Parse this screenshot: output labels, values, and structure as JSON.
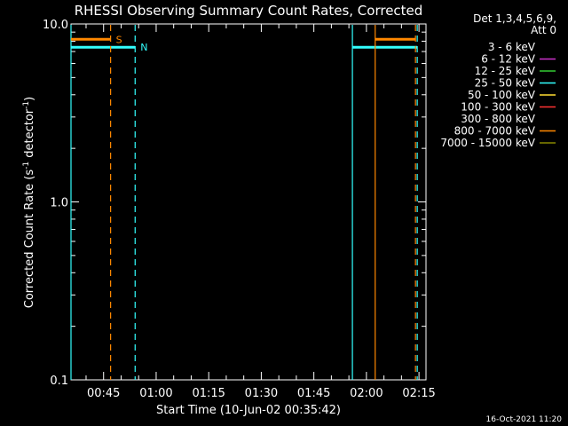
{
  "chart_data": {
    "type": "line",
    "title": "RHESSI Observing Summary Count Rates, Corrected",
    "xlabel": "Start Time (10-Jun-02 00:35:42)",
    "ylabel_main": "Corrected Count Rate (s",
    "ylabel_sup1": "-1",
    "ylabel_mid": " detector",
    "ylabel_sup2": "-1",
    "ylabel_end": ")",
    "yscale": "log",
    "ylim": [
      0.1,
      10.0
    ],
    "xlim": [
      "00:35:42",
      "02:17:00"
    ],
    "y_ticks": [
      "0.1",
      "1.0",
      "10.0"
    ],
    "x_ticks": [
      "00:45",
      "01:00",
      "01:15",
      "01:30",
      "01:45",
      "02:00",
      "02:15"
    ],
    "legend_header": [
      "Det 1,3,4,5,6,9,",
      "Att 0"
    ],
    "legend": [
      {
        "label": "3 - 6 keV",
        "color": "#000000"
      },
      {
        "label": "6 - 12 keV",
        "color": "#cc33cc"
      },
      {
        "label": "12 - 25 keV",
        "color": "#33cc33"
      },
      {
        "label": "25 - 50 keV",
        "color": "#33ffff"
      },
      {
        "label": "50 - 100 keV",
        "color": "#ffdd33"
      },
      {
        "label": "100 - 300 keV",
        "color": "#ff3333"
      },
      {
        "label": "300 - 800 keV",
        "color": "#000000"
      },
      {
        "label": "800 - 7000 keV",
        "color": "#ff8800"
      },
      {
        "label": "7000 - 15000 keV",
        "color": "#888800"
      }
    ],
    "series": [],
    "markers": {
      "saa": {
        "label": "S",
        "color": "#ff8800",
        "y": 8.2,
        "intervals": [
          [
            "00:35:42",
            "00:47:00"
          ],
          [
            "02:02:30",
            "02:14:00"
          ]
        ],
        "dashed": [
          "00:47:00",
          "02:14:00"
        ],
        "solid": [
          "02:02:30"
        ]
      },
      "night": {
        "label": "N",
        "color": "#33ffff",
        "y": 7.4,
        "intervals": [
          [
            "00:35:42",
            "00:54:00"
          ],
          [
            "01:56:00",
            "02:14:30"
          ]
        ],
        "dashed": [
          "00:54:00",
          "02:14:30"
        ],
        "solid": [
          "00:35:42",
          "01:56:00"
        ]
      }
    }
  },
  "footer": {
    "timestamp": "16-Oct-2021 11:20"
  }
}
